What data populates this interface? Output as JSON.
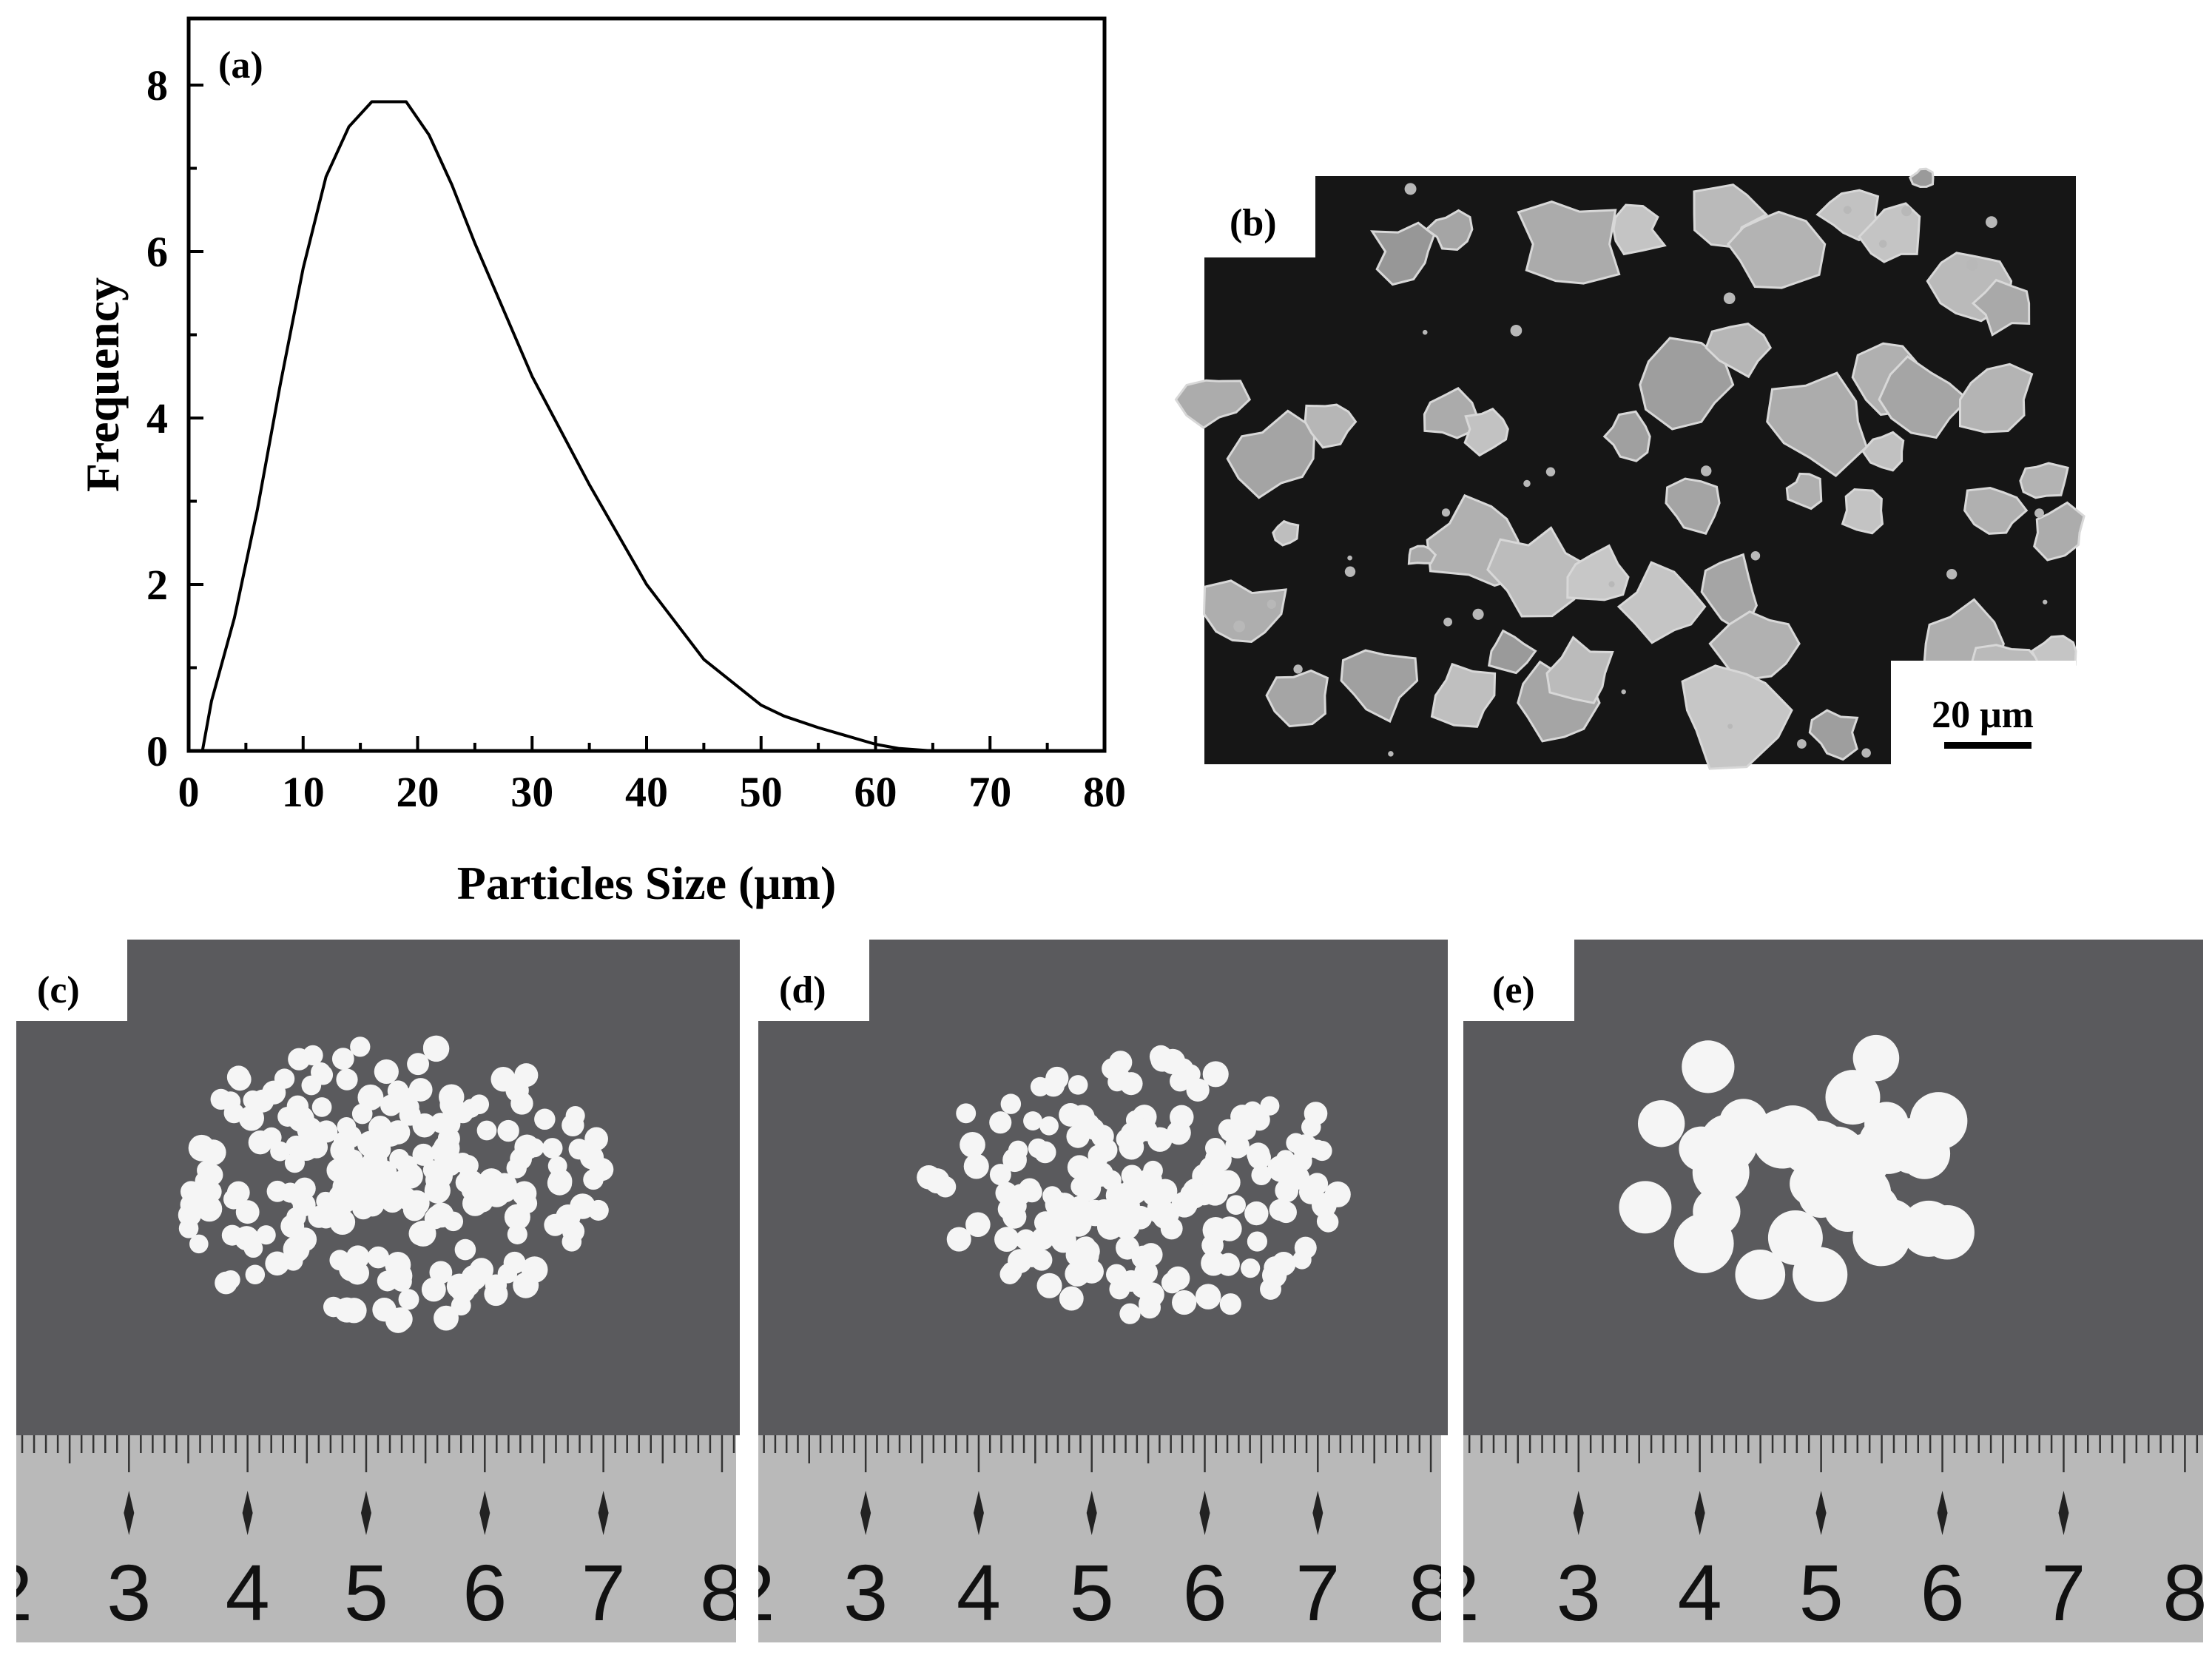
{
  "panels": {
    "a": "(a)",
    "b": "(b)",
    "c": "(c)",
    "d": "(d)",
    "e": "(e)"
  },
  "sem": {
    "scale_bar_label": "20 μm"
  },
  "ruler": {
    "numbers": [
      "2",
      "3",
      "4",
      "5",
      "6",
      "7",
      "8"
    ]
  },
  "colors": {
    "photo_background": "#5a5a5d",
    "sem_background": "#161616",
    "ruler_metal": "#b9b9b9",
    "bead": "#f5f5f5",
    "curve": "#000000"
  },
  "chart_data": {
    "type": "line",
    "xlabel": "Particles Size (μm)",
    "ylabel": "Frequency",
    "xlim": [
      0,
      80
    ],
    "ylim": [
      0,
      8.8
    ],
    "xticks": [
      0,
      10,
      20,
      30,
      40,
      50,
      60,
      70,
      80
    ],
    "yticks": [
      0,
      2,
      4,
      6,
      8
    ],
    "grid": false,
    "x": [
      1.2,
      2,
      4,
      6,
      8,
      10,
      12,
      14,
      16,
      17,
      19,
      21,
      23,
      25,
      30,
      35,
      40,
      45,
      50,
      52,
      55,
      60,
      62,
      65
    ],
    "y": [
      0,
      0.6,
      1.6,
      2.9,
      4.4,
      5.8,
      6.9,
      7.5,
      7.8,
      7.8,
      7.8,
      7.4,
      6.8,
      6.1,
      4.5,
      3.2,
      2.0,
      1.1,
      0.55,
      0.42,
      0.28,
      0.08,
      0.03,
      0
    ]
  }
}
